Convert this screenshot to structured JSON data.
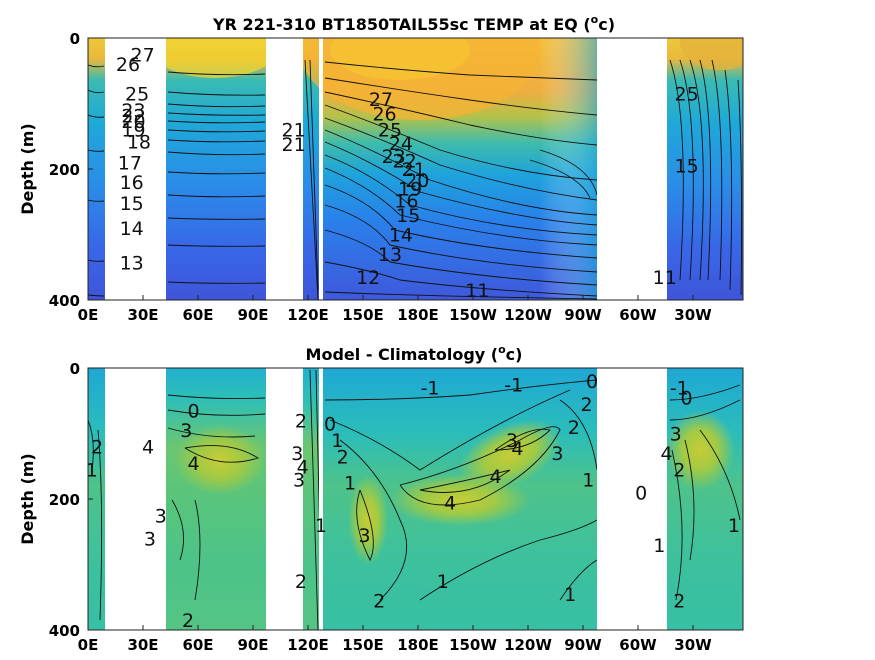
{
  "chart_data": [
    {
      "type": "heatmap",
      "title": "YR 221-310 BT1850TAIL55sc TEMP at EQ (°c)",
      "title_main": "YR 221-310 BT1850TAIL55sc TEMP at EQ (",
      "title_sup": "o",
      "title_unit": "c)",
      "ylabel": "Depth (m)",
      "xlabel": "",
      "x_ticks": [
        "0E",
        "30E",
        "60E",
        "90E",
        "120E",
        "150E",
        "180E",
        "150W",
        "120W",
        "90W",
        "60W",
        "30W"
      ],
      "y_ticks": [
        "0",
        "200",
        "400"
      ],
      "ylim": [
        0,
        400
      ],
      "y_reversed": true,
      "colormap": "parula",
      "contour_labels": [
        "27",
        "26",
        "25",
        "23",
        "22",
        "21",
        "20",
        "19",
        "18",
        "17",
        "16",
        "15",
        "14",
        "13",
        "12",
        "11",
        "24"
      ],
      "visible_contour_labels": [
        {
          "text": "27",
          "x": 30,
          "y": 25
        },
        {
          "text": "26",
          "x": 22,
          "y": 40
        },
        {
          "text": "25",
          "x": 27,
          "y": 85
        },
        {
          "text": "23",
          "x": 25,
          "y": 110
        },
        {
          "text": "22",
          "x": 25,
          "y": 118
        },
        {
          "text": "20",
          "x": 25,
          "y": 127
        },
        {
          "text": "19",
          "x": 25,
          "y": 140
        },
        {
          "text": "18",
          "x": 28,
          "y": 158
        },
        {
          "text": "17",
          "x": 23,
          "y": 190
        },
        {
          "text": "16",
          "x": 24,
          "y": 220
        },
        {
          "text": "15",
          "x": 24,
          "y": 252
        },
        {
          "text": "14",
          "x": 24,
          "y": 290
        },
        {
          "text": "13",
          "x": 24,
          "y": 343
        },
        {
          "text": "21",
          "x": 113,
          "y": 140
        },
        {
          "text": "21",
          "x": 113,
          "y": 162
        },
        {
          "text": "27",
          "x": 161,
          "y": 93
        },
        {
          "text": "26",
          "x": 163,
          "y": 115
        },
        {
          "text": "25",
          "x": 166,
          "y": 140
        },
        {
          "text": "24",
          "x": 172,
          "y": 160
        },
        {
          "text": "23",
          "x": 168,
          "y": 180
        },
        {
          "text": "22",
          "x": 174,
          "y": 187
        },
        {
          "text": "21",
          "x": 179,
          "y": 200
        },
        {
          "text": "20",
          "x": 181,
          "y": 217
        },
        {
          "text": "19",
          "x": 177,
          "y": 230
        },
        {
          "text": "16",
          "x": 175,
          "y": 248
        },
        {
          "text": "15",
          "x": 176,
          "y": 270
        },
        {
          "text": "14",
          "x": 172,
          "y": 300
        },
        {
          "text": "13",
          "x": 166,
          "y": 330
        },
        {
          "text": "12",
          "x": 154,
          "y": 365
        },
        {
          "text": "11",
          "x": 214,
          "y": 385
        },
        {
          "text": "25",
          "x": 329,
          "y": 85
        },
        {
          "text": "15",
          "x": 329,
          "y": 195
        },
        {
          "text": "11",
          "x": 317,
          "y": 365
        }
      ],
      "missing_bands_lon": [
        [
          5,
          43
        ],
        [
          97,
          119
        ],
        [
          121,
          123
        ],
        [
          126,
          128
        ],
        [
          213,
          283
        ]
      ],
      "colors": {
        "deep": "#3d52d8",
        "mid": "#23b3c7",
        "warm": "#f7a83a",
        "hot": "#f5dd26"
      }
    },
    {
      "type": "heatmap",
      "title": "Model - Climatology (°c)",
      "title_main": "Model - Climatology (",
      "title_sup": "o",
      "title_unit": "c)",
      "ylabel": "Depth (m)",
      "xlabel": "",
      "x_ticks": [
        "0E",
        "30E",
        "60E",
        "90E",
        "120E",
        "150E",
        "180E",
        "150W",
        "120W",
        "90W",
        "60W",
        "30W"
      ],
      "y_ticks": [
        "0",
        "200",
        "400"
      ],
      "ylim": [
        0,
        400
      ],
      "y_reversed": true,
      "colormap": "parula",
      "visible_contour_labels": [
        {
          "text": "2",
          "x": 5,
          "y": 120
        },
        {
          "text": "1",
          "x": 2,
          "y": 155
        },
        {
          "text": "0",
          "x": 58,
          "y": 65
        },
        {
          "text": "3",
          "x": 54,
          "y": 95
        },
        {
          "text": "4",
          "x": 33,
          "y": 120
        },
        {
          "text": "4",
          "x": 58,
          "y": 145
        },
        {
          "text": "3",
          "x": 40,
          "y": 225
        },
        {
          "text": "3",
          "x": 34,
          "y": 260
        },
        {
          "text": "2",
          "x": 55,
          "y": 385
        },
        {
          "text": "2",
          "x": 117,
          "y": 80
        },
        {
          "text": "3",
          "x": 115,
          "y": 130
        },
        {
          "text": "4",
          "x": 118,
          "y": 150
        },
        {
          "text": "3",
          "x": 116,
          "y": 170
        },
        {
          "text": "2",
          "x": 117,
          "y": 325
        },
        {
          "text": "0",
          "x": 133,
          "y": 85
        },
        {
          "text": "1",
          "x": 137,
          "y": 110
        },
        {
          "text": "2",
          "x": 140,
          "y": 135
        },
        {
          "text": "1",
          "x": 144,
          "y": 175
        },
        {
          "text": "1",
          "x": 128,
          "y": 240
        },
        {
          "text": "3",
          "x": 152,
          "y": 255
        },
        {
          "text": "2",
          "x": 160,
          "y": 355
        },
        {
          "text": "-1",
          "x": 188,
          "y": 30
        },
        {
          "text": "-1",
          "x": 234,
          "y": 25
        },
        {
          "text": "4",
          "x": 199,
          "y": 205
        },
        {
          "text": "4",
          "x": 224,
          "y": 165
        },
        {
          "text": "4",
          "x": 236,
          "y": 122
        },
        {
          "text": "3",
          "x": 233,
          "y": 110
        },
        {
          "text": "3",
          "x": 258,
          "y": 130
        },
        {
          "text": "2",
          "x": 267,
          "y": 90
        },
        {
          "text": "2",
          "x": 274,
          "y": 55
        },
        {
          "text": "0",
          "x": 277,
          "y": 20
        },
        {
          "text": "1",
          "x": 275,
          "y": 170
        },
        {
          "text": "1",
          "x": 195,
          "y": 325
        },
        {
          "text": "1",
          "x": 265,
          "y": 345
        },
        {
          "text": "-1",
          "x": 325,
          "y": 30
        },
        {
          "text": "0",
          "x": 329,
          "y": 45
        },
        {
          "text": "3",
          "x": 323,
          "y": 100
        },
        {
          "text": "4",
          "x": 318,
          "y": 130
        },
        {
          "text": "2",
          "x": 325,
          "y": 155
        },
        {
          "text": "0",
          "x": 304,
          "y": 190
        },
        {
          "text": "1",
          "x": 314,
          "y": 270
        },
        {
          "text": "1",
          "x": 355,
          "y": 240
        },
        {
          "text": "2",
          "x": 325,
          "y": 355
        }
      ],
      "missing_bands_lon": [
        [
          5,
          43
        ],
        [
          97,
          119
        ],
        [
          121,
          123
        ],
        [
          126,
          128
        ],
        [
          213,
          283
        ]
      ],
      "colors": {
        "neg": "#1fa8d8",
        "zero": "#2ec3ad",
        "pos": "#8cc84a",
        "hot": "#c5cc3a"
      }
    }
  ]
}
